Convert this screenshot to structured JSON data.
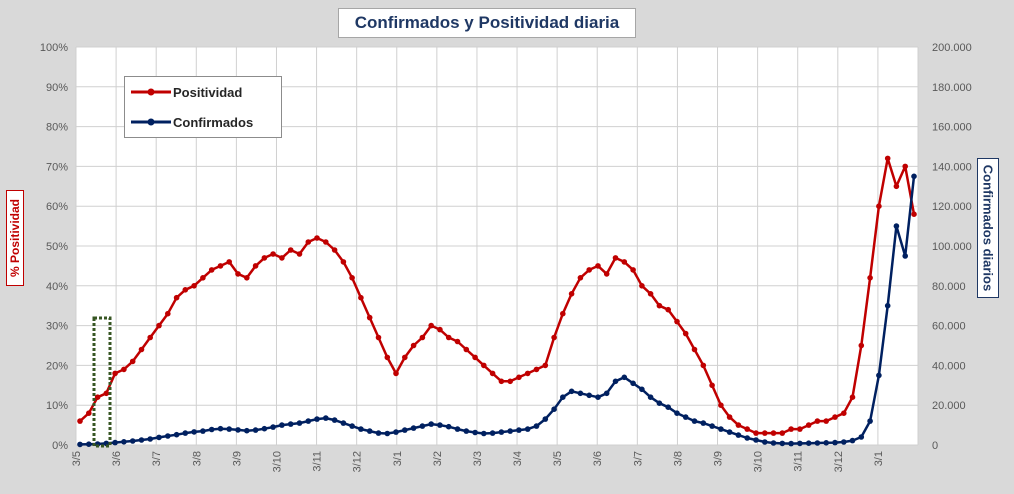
{
  "chart_data": {
    "type": "line",
    "title": "Confirmados  y Positividad  diaria",
    "ylabel_left": "% Positividad",
    "ylabel_right": "Confirmados diarios",
    "x_tick_labels": [
      "3/5",
      "3/6",
      "3/7",
      "3/8",
      "3/9",
      "3/10",
      "3/11",
      "3/12",
      "3/1",
      "3/2",
      "3/3",
      "3/4",
      "3/5",
      "3/6",
      "3/7",
      "3/8",
      "3/9",
      "3/10",
      "3/11",
      "3/12",
      "3/1"
    ],
    "y_left_ticks": [
      "0%",
      "10%",
      "20%",
      "30%",
      "40%",
      "50%",
      "60%",
      "70%",
      "80%",
      "90%",
      "100%"
    ],
    "y_right_ticks": [
      "0",
      "20.000",
      "40.000",
      "60.000",
      "80.000",
      "100.000",
      "120.000",
      "140.000",
      "160.000",
      "180.000",
      "200.000"
    ],
    "ylim_left": [
      0,
      100
    ],
    "ylim_right": [
      0,
      200000
    ],
    "grid": true,
    "legend_position": "top-left",
    "series": [
      {
        "name": "Positividad",
        "axis": "left",
        "color": "#c00000",
        "values": [
          6,
          8,
          12,
          13,
          18,
          19,
          21,
          24,
          27,
          30,
          33,
          37,
          39,
          40,
          42,
          44,
          45,
          46,
          43,
          42,
          45,
          47,
          48,
          47,
          49,
          48,
          51,
          52,
          51,
          49,
          46,
          42,
          37,
          32,
          27,
          22,
          18,
          22,
          25,
          27,
          30,
          29,
          27,
          26,
          24,
          22,
          20,
          18,
          16,
          16,
          17,
          18,
          19,
          20,
          27,
          33,
          38,
          42,
          44,
          45,
          43,
          47,
          46,
          44,
          40,
          38,
          35,
          34,
          31,
          28,
          24,
          20,
          15,
          10,
          7,
          5,
          4,
          3,
          3,
          3,
          3,
          4,
          4,
          5,
          6,
          6,
          7,
          8,
          12,
          25,
          42,
          60,
          72,
          65,
          70,
          58
        ]
      },
      {
        "name": "Confirmados",
        "axis": "right",
        "color": "#002060",
        "values": [
          300,
          400,
          500,
          800,
          1200,
          1600,
          2000,
          2500,
          3000,
          3800,
          4500,
          5200,
          6000,
          6600,
          7000,
          7800,
          8200,
          8000,
          7600,
          7200,
          7500,
          8200,
          9000,
          10000,
          10500,
          11000,
          12000,
          13000,
          13500,
          12500,
          11000,
          9500,
          8000,
          7000,
          6000,
          5800,
          6500,
          7500,
          8500,
          9500,
          10500,
          10000,
          9200,
          8000,
          7000,
          6300,
          5800,
          6000,
          6500,
          7000,
          7500,
          8000,
          9500,
          13000,
          18000,
          24000,
          27000,
          26000,
          25000,
          24000,
          26000,
          32000,
          34000,
          31000,
          28000,
          24000,
          21000,
          19000,
          16000,
          14000,
          12000,
          11000,
          9500,
          8000,
          6500,
          5000,
          3500,
          2500,
          1500,
          1000,
          800,
          700,
          800,
          900,
          1000,
          1100,
          1200,
          1500,
          2200,
          4000,
          12000,
          35000,
          70000,
          110000,
          95000,
          135000
        ]
      }
    ]
  },
  "legend": {
    "positividad": "Positividad",
    "confirmados": "Confirmados"
  },
  "colors": {
    "background": "#d9d9d9",
    "plot": "#ffffff",
    "grid": "#d0d0d0",
    "positividad": "#c00000",
    "confirmados": "#002060",
    "marker_box": "#375623"
  }
}
